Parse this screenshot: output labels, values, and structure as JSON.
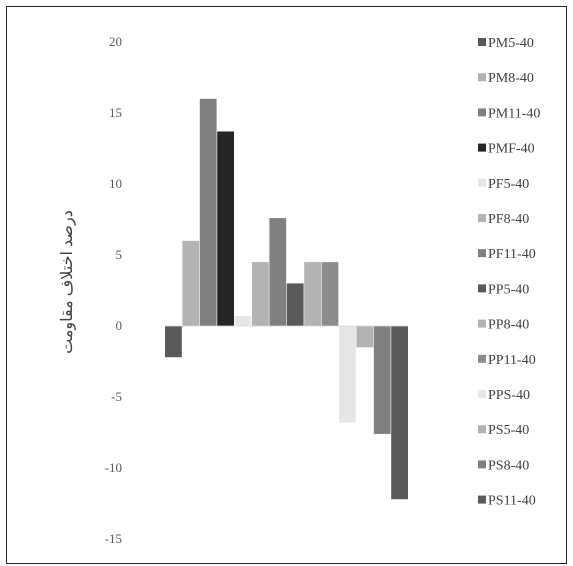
{
  "chart_data": {
    "type": "bar",
    "title": "",
    "xlabel": "",
    "ylabel": "درصد اختلاف مقاومت",
    "ylim": [
      -15,
      20
    ],
    "yticks": [
      "20",
      "15",
      "10",
      "5",
      "0",
      "-5",
      "-10",
      "-15"
    ],
    "grid": false,
    "legend_position": "right",
    "series": [
      {
        "name": "PM5-40",
        "value": -2.2,
        "color": "#595959"
      },
      {
        "name": "PM8-40",
        "value": 6.0,
        "color": "#b3b3b3"
      },
      {
        "name": "PM11-40",
        "value": 16.0,
        "color": "#808080"
      },
      {
        "name": "PMF-40",
        "value": 13.7,
        "color": "#262626"
      },
      {
        "name": "PF5-40",
        "value": 0.7,
        "color": "#e6e6e6"
      },
      {
        "name": "PF8-40",
        "value": 4.5,
        "color": "#b3b3b3"
      },
      {
        "name": "PF11-40",
        "value": 7.6,
        "color": "#808080"
      },
      {
        "name": "PP5-40",
        "value": 3.0,
        "color": "#595959"
      },
      {
        "name": "PP8-40",
        "value": 4.5,
        "color": "#b3b3b3"
      },
      {
        "name": "PP11-40",
        "value": 4.5,
        "color": "#8c8c8c"
      },
      {
        "name": "PPS-40",
        "value": -6.8,
        "color": "#e6e6e6"
      },
      {
        "name": "PS5-40",
        "value": -1.5,
        "color": "#b3b3b3"
      },
      {
        "name": "PS8-40",
        "value": -7.6,
        "color": "#808080"
      },
      {
        "name": "PS11-40",
        "value": -12.2,
        "color": "#595959"
      }
    ]
  }
}
